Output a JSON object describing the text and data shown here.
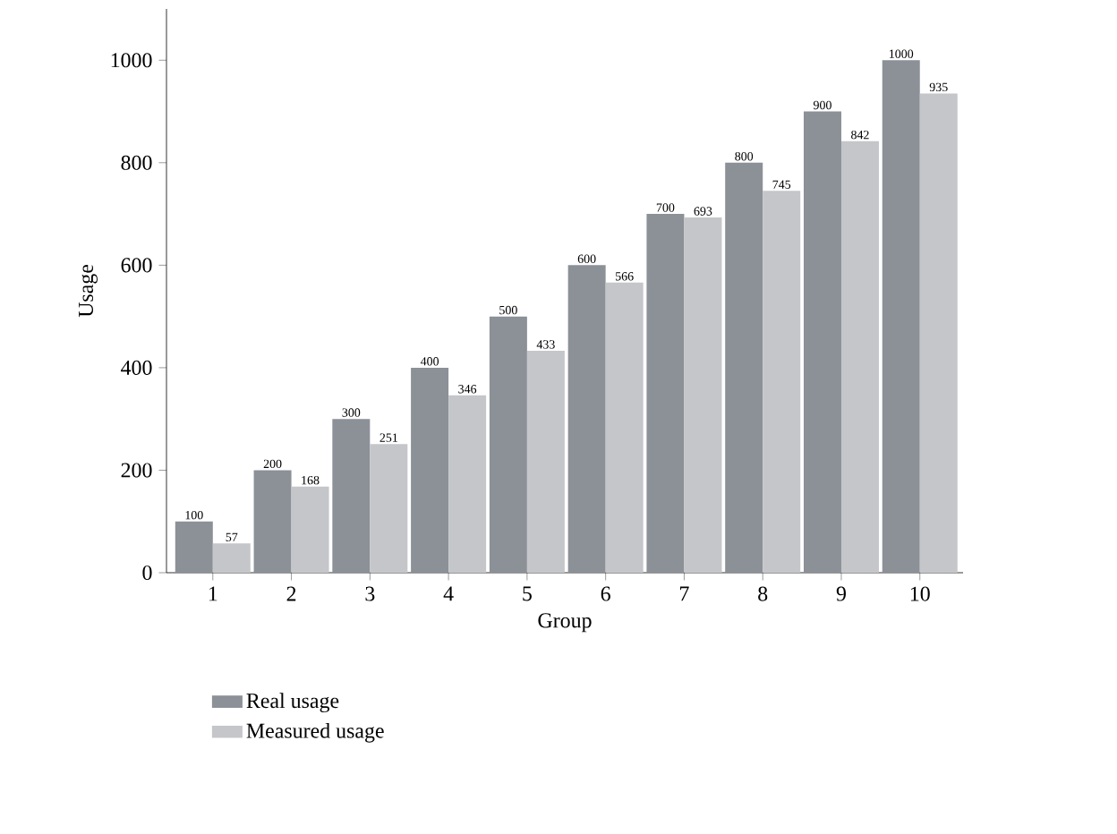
{
  "chart_data": {
    "type": "bar",
    "xlabel": "Group",
    "ylabel": "Usage",
    "categories": [
      "1",
      "2",
      "3",
      "4",
      "5",
      "6",
      "7",
      "8",
      "9",
      "10"
    ],
    "series": [
      {
        "name": "Real usage",
        "color": "#8c9097",
        "values": [
          100,
          200,
          300,
          400,
          500,
          600,
          700,
          800,
          900,
          1000
        ]
      },
      {
        "name": "Measured usage",
        "color": "#c4c6ca",
        "values": [
          57,
          168,
          251,
          346,
          433,
          566,
          693,
          745,
          842,
          935
        ]
      }
    ],
    "ylim": [
      0,
      1100
    ],
    "yticks": [
      0,
      200,
      400,
      600,
      800,
      1000
    ],
    "data_labels": true,
    "legend": "bottom left",
    "grid": false
  }
}
